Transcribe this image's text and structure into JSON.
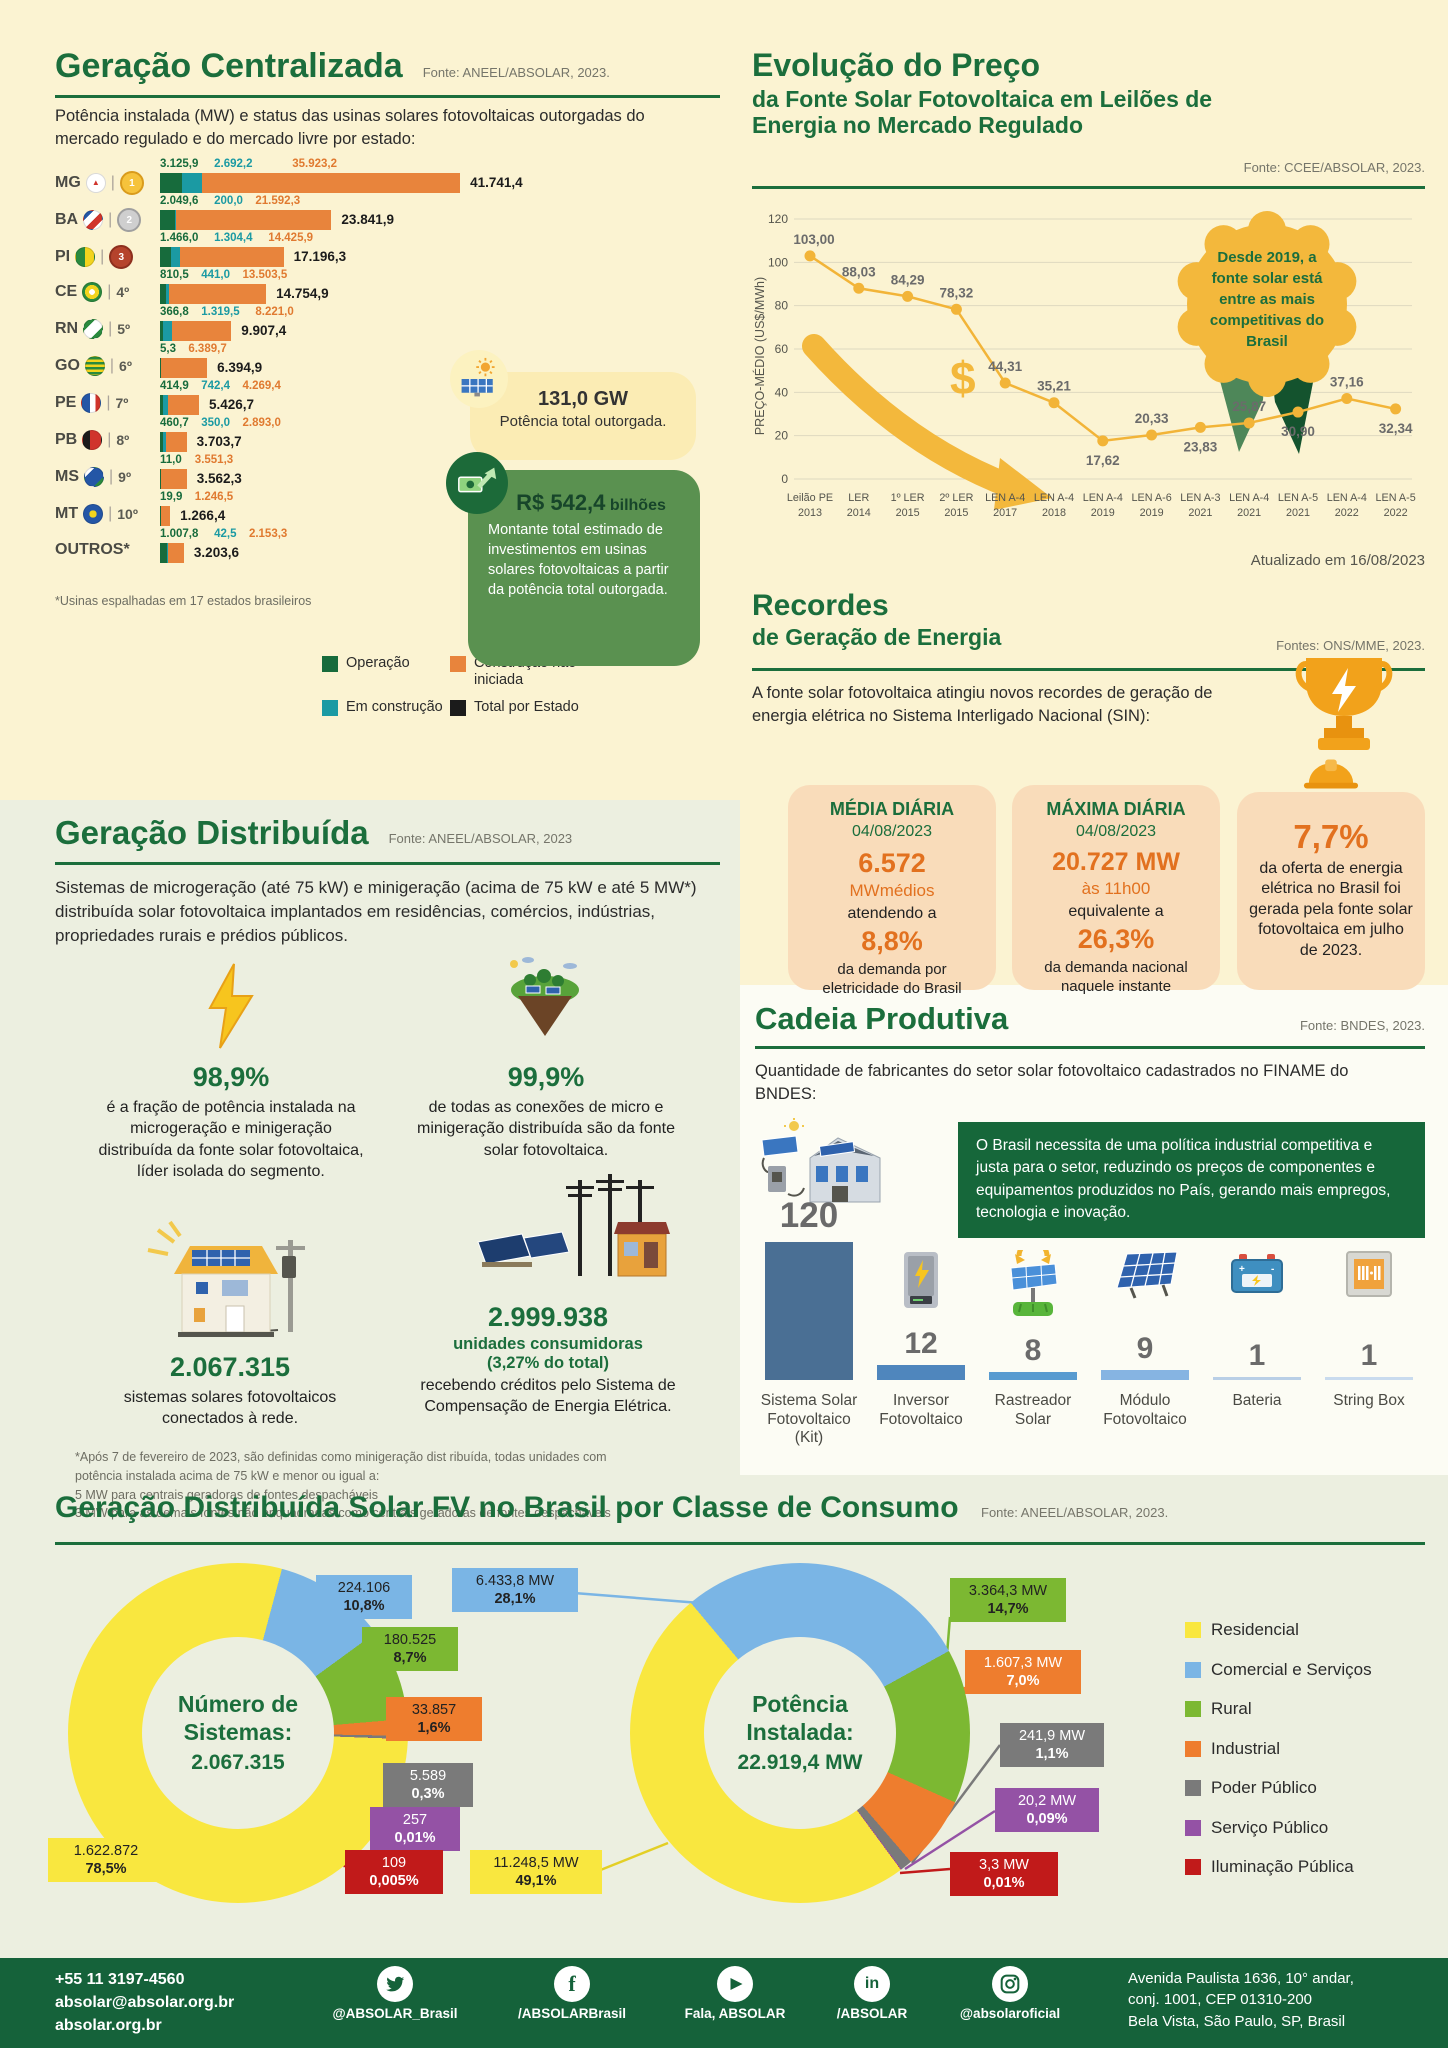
{
  "gc": {
    "title": "Geração Centralizada",
    "fonte": "Fonte: ANEEL/ABSOLAR, 2023.",
    "subtitle": "Potência instalada (MW) e status das usinas solares fotovoltaicas outorgadas do mercado regulado e do mercado livre por estado:",
    "footnote": "*Usinas espalhadas em 17 estados brasileiros",
    "legend": [
      {
        "label": "Operação",
        "color": "#176b3c"
      },
      {
        "label": "Em construção",
        "color": "#1b9aa3"
      },
      {
        "label": "Construção não iniciada",
        "color": "#e8843c"
      },
      {
        "label": "Total por Estado",
        "color": "#1b1b1b"
      }
    ],
    "callout_gw": {
      "value": "131,0 GW",
      "label": "Potência total outorgada."
    },
    "callout_inv": {
      "value": "R$ 542,4",
      "unit": "bilhões",
      "text": "Montante total estimado de investimentos em usinas solares fotovoltaicas a partir da potência total outorgada."
    }
  },
  "preco": {
    "title1": "Evolução do Preço",
    "title2": "da Fonte Solar Fotovoltaica em Leilões de",
    "title3": "Energia no Mercado Regulado",
    "fonte": "Fonte: CCEE/ABSOLAR, 2023.",
    "badge": [
      "Desde 2019, a",
      "fonte solar está",
      "entre as mais",
      "competitivas do",
      "Brasil"
    ],
    "updated": "Atualizado em 16/08/2023"
  },
  "recordes": {
    "title1": "Recordes",
    "title2": "de Geração de Energia",
    "fonte": "Fontes: ONS/MME, 2023.",
    "intro": "A fonte solar fotovoltaica atingiu novos recordes de geração de energia elétrica no Sistema Interligado Nacional (SIN):",
    "cards": [
      {
        "title": "MÉDIA DIÁRIA",
        "date": "04/08/2023",
        "big": "6.572",
        "big2": "MWmédios",
        "mid": "atendendo a",
        "pct": "8,8%",
        "tail": "da demanda por eletricidade do Brasil"
      },
      {
        "title": "MÁXIMA DIÁRIA",
        "date": "04/08/2023",
        "big": "20.727 MW",
        "big2": "às 11h00",
        "mid": "equivalente a",
        "pct": "26,3%",
        "tail": "da demanda nacional naquele instante"
      },
      {
        "pct": "7,7%",
        "tail": "da oferta de energia elétrica no Brasil foi gerada pela fonte solar fotovoltaica em julho de 2023."
      }
    ]
  },
  "distribuida": {
    "title": "Geração Distribuída",
    "fonte": "Fonte: ANEEL/ABSOLAR, 2023",
    "intro": "Sistemas de microgeração (até 75 kW) e minigeração (acima de 75 kW e até  5 MW*) distribuída solar fotovoltaica implantados em residências, comércios, indústrias, propriedades rurais e prédios públicos.",
    "stat1": {
      "value": "98,9%",
      "text": "é a fração de potência instalada na microgeração e minigeração distribuída da fonte solar fotovoltaica, líder isolada do segmento."
    },
    "stat2": {
      "value": "99,9%",
      "text": "de todas as conexões de micro e minigeração distribuída são da fonte solar fotovoltaica."
    },
    "stat3": {
      "value": "2.067.315",
      "text": "sistemas solares fotovoltaicos conectados à rede."
    },
    "stat4": {
      "value": "2.999.938",
      "bold1": "unidades consumidoras",
      "bold2": "(3,27% do total)",
      "text": "recebendo créditos pelo Sistema de Compensação de Energia Elétrica."
    },
    "footnote": "*Após 7 de fevereiro de 2023, são definidas como minigeração dist ribuída, todas unidades com\npotência instalada acima de 75 kW e menor ou igual a:\n5 MW para centrais geradoras de fontes despacháveis\n3 MW para as demais fontes não enquadradas como centrais geradoras de fontes despacháveis"
  },
  "cadeia": {
    "title": "Cadeia Produtiva",
    "fonte": "Fonte: BNDES, 2023.",
    "intro": "Quantidade de fabricantes do setor solar fotovoltaico cadastrados no FINAME do BNDES:",
    "note": "O Brasil necessita de uma política industrial competitiva e justa para o setor, reduzindo os preços de componentes e equipamentos produzidos no País, gerando mais empregos, tecnologia e inovação."
  },
  "classe": {
    "title": "Geração Distribuída Solar FV no Brasil por Classe de Consumo",
    "fonte": "Fonte: ANEEL/ABSOLAR, 2023.",
    "legend": [
      {
        "label": "Residencial",
        "color": "#f9e73f"
      },
      {
        "label": "Comercial e Serviços",
        "color": "#7ab5e5"
      },
      {
        "label": "Rural",
        "color": "#7cb832"
      },
      {
        "label": "Industrial",
        "color": "#ee7d2e"
      },
      {
        "label": "Poder Público",
        "color": "#7a7a7a"
      },
      {
        "label": "Serviço Público",
        "color": "#9452a5"
      },
      {
        "label": "Iluminação Pública",
        "color": "#c11a1a"
      }
    ]
  },
  "footer": {
    "phone": "+55 11 3197-4560",
    "email": "absolar@absolar.org.br",
    "site": "absolar.org.br",
    "socials": [
      {
        "icon": "twitter-icon",
        "label": "@ABSOLAR_Brasil"
      },
      {
        "icon": "facebook-icon",
        "label": "/ABSOLARBrasil"
      },
      {
        "icon": "youtube-icon",
        "label": "Fala, ABSOLAR"
      },
      {
        "icon": "linkedin-icon",
        "label": "/ABSOLAR"
      },
      {
        "icon": "instagram-icon",
        "label": "@absolaroficial"
      }
    ],
    "address": "Avenida Paulista 1636, 10° andar,\nconj. 1001, CEP 01310-200\nBela Vista, São Paulo, SP, Brasil"
  },
  "chart_data": [
    {
      "type": "bar",
      "orientation": "horizontal",
      "unit": "MW",
      "title": "Potência instalada (MW) por estado",
      "series_names": [
        "Operação",
        "Em construção",
        "Construção não iniciada"
      ],
      "rows": [
        {
          "state": "MG",
          "rank": "1º",
          "medal": "gold",
          "op": 3125.9,
          "ec": 2692.2,
          "ni": 35923.2,
          "labels": {
            "op": "3.125,9",
            "ec": "2.692,2",
            "ni": "35.923,2",
            "total": "41.741,4"
          }
        },
        {
          "state": "BA",
          "rank": "2º",
          "medal": "silver",
          "op": 2049.6,
          "ec": 200.0,
          "ni": 21592.3,
          "labels": {
            "op": "2.049,6",
            "ec": "200,0",
            "ni": "21.592,3",
            "total": "23.841,9"
          }
        },
        {
          "state": "PI",
          "rank": "3º",
          "medal": "bronze",
          "op": 1466.0,
          "ec": 1304.4,
          "ni": 14425.9,
          "labels": {
            "op": "1.466,0",
            "ec": "1.304,4",
            "ni": "14.425,9",
            "total": "17.196,3"
          }
        },
        {
          "state": "CE",
          "rank": "4º",
          "medal": null,
          "op": 810.5,
          "ec": 441.0,
          "ni": 13503.5,
          "labels": {
            "op": "810,5",
            "ec": "441,0",
            "ni": "13.503,5",
            "total": "14.754,9"
          }
        },
        {
          "state": "RN",
          "rank": "5º",
          "medal": null,
          "op": 366.8,
          "ec": 1319.5,
          "ni": 8221.0,
          "labels": {
            "op": "366,8",
            "ec": "1.319,5",
            "ni": "8.221,0",
            "total": "9.907,4"
          }
        },
        {
          "state": "GO",
          "rank": "6º",
          "medal": null,
          "op": 5.3,
          "ec": 0,
          "ni": 6389.7,
          "labels": {
            "op": "5,3",
            "ni": "6.389,7",
            "total": "6.394,9"
          }
        },
        {
          "state": "PE",
          "rank": "7º",
          "medal": null,
          "op": 414.9,
          "ec": 742.4,
          "ni": 4269.4,
          "labels": {
            "op": "414,9",
            "ec": "742,4",
            "ni": "4.269,4",
            "total": "5.426,7"
          }
        },
        {
          "state": "PB",
          "rank": "8º",
          "medal": null,
          "op": 460.7,
          "ec": 350.0,
          "ni": 2893.0,
          "labels": {
            "op": "460,7",
            "ec": "350,0",
            "ni": "2.893,0",
            "total": "3.703,7"
          }
        },
        {
          "state": "MS",
          "rank": "9º",
          "medal": null,
          "op": 11.0,
          "ec": 0,
          "ni": 3551.3,
          "labels": {
            "op": "11,0",
            "ni": "3.551,3",
            "total": "3.562,3"
          }
        },
        {
          "state": "MT",
          "rank": "10º",
          "medal": null,
          "op": 19.9,
          "ec": 0,
          "ni": 1246.5,
          "labels": {
            "op": "19,9",
            "ni": "1.246,5",
            "total": "1.266,4"
          }
        },
        {
          "state": "OUTROS*",
          "rank": null,
          "medal": null,
          "op": 1007.8,
          "ec": 42.5,
          "ni": 2153.3,
          "labels": {
            "op": "1.007,8",
            "ec": "42,5",
            "ni": "2.153,3",
            "total": "3.203,6"
          }
        }
      ]
    },
    {
      "type": "line",
      "ylabel": "PREÇO-MÉDIO (US$/MWh)",
      "ylim": [
        0,
        120
      ],
      "yticks": [
        0,
        20,
        40,
        60,
        80,
        100,
        120
      ],
      "x": [
        [
          "Leilão PE",
          "2013"
        ],
        [
          "LER",
          "2014"
        ],
        [
          "1º LER",
          "2015"
        ],
        [
          "2º LER",
          "2015"
        ],
        [
          "LEN A-4",
          "2017"
        ],
        [
          "LEN A-4",
          "2018"
        ],
        [
          "LEN A-4",
          "2019"
        ],
        [
          "LEN A-6",
          "2019"
        ],
        [
          "LEN A-3",
          "2021"
        ],
        [
          "LEN A-4",
          "2021"
        ],
        [
          "LEN A-5",
          "2021"
        ],
        [
          "LEN A-4",
          "2022"
        ],
        [
          "LEN A-5",
          "2022"
        ]
      ],
      "values": [
        103.0,
        88.03,
        84.29,
        78.32,
        44.31,
        35.21,
        17.62,
        20.33,
        23.83,
        25.87,
        30.9,
        37.16,
        32.34
      ],
      "labels": [
        "103,00",
        "88,03",
        "84,29",
        "78,32",
        "44,31",
        "35,21",
        "17,62",
        "20,33",
        "23,83",
        "25,87",
        "30,90",
        "37,16",
        "32,34"
      ],
      "label_side": [
        "a",
        "a",
        "a",
        "a",
        "a",
        "a",
        "b",
        "a",
        "b",
        "a",
        "b",
        "a",
        "b"
      ]
    },
    {
      "type": "bar",
      "title": "Fabricantes cadastrados no FINAME do BNDES",
      "categories": [
        "Sistema Solar\nFotovoltaico\n(Kit)",
        "Inversor\nFotovoltaico",
        "Rastreador\nSolar",
        "Módulo\nFotovoltaico",
        "Bateria",
        "String Box"
      ],
      "values": [
        120,
        12,
        8,
        9,
        1,
        1
      ]
    },
    {
      "type": "pie",
      "title": "Número de\nSistemas:",
      "total": "2.067.315",
      "slices": [
        {
          "class": "Residencial",
          "value": "1.622.872",
          "pct": "78,5%",
          "color": "#f9e73f"
        },
        {
          "class": "Comercial e Serviços",
          "value": "224.106",
          "pct": "10,8%",
          "color": "#7ab5e5"
        },
        {
          "class": "Rural",
          "value": "180.525",
          "pct": "8,7%",
          "color": "#7cb832"
        },
        {
          "class": "Industrial",
          "value": "33.857",
          "pct": "1,6%",
          "color": "#ee7d2e"
        },
        {
          "class": "Poder Público",
          "value": "5.589",
          "pct": "0,3%",
          "color": "#7a7a7a"
        },
        {
          "class": "Serviço Público",
          "value": "257",
          "pct": "0,01%",
          "color": "#9452a5"
        },
        {
          "class": "Iluminação Pública",
          "value": "109",
          "pct": "0,005%",
          "color": "#c11a1a"
        }
      ]
    },
    {
      "type": "pie",
      "title": "Potência\nInstalada:",
      "total": "22.919,4 MW",
      "slices": [
        {
          "class": "Residencial",
          "value": "11.248,5 MW",
          "pct": "49,1%",
          "color": "#f9e73f"
        },
        {
          "class": "Comercial e Serviços",
          "value": "6.433,8 MW",
          "pct": "28,1%",
          "color": "#7ab5e5"
        },
        {
          "class": "Rural",
          "value": "3.364,3 MW",
          "pct": "14,7%",
          "color": "#7cb832"
        },
        {
          "class": "Industrial",
          "value": "1.607,3 MW",
          "pct": "7,0%",
          "color": "#ee7d2e"
        },
        {
          "class": "Poder Público",
          "value": "241,9 MW",
          "pct": "1,1%",
          "color": "#7a7a7a"
        },
        {
          "class": "Serviço Público",
          "value": "20,2 MW",
          "pct": "0,09%",
          "color": "#9452a5"
        },
        {
          "class": "Iluminação Pública",
          "value": "3,3 MW",
          "pct": "0,01%",
          "color": "#c11a1a"
        }
      ]
    }
  ]
}
